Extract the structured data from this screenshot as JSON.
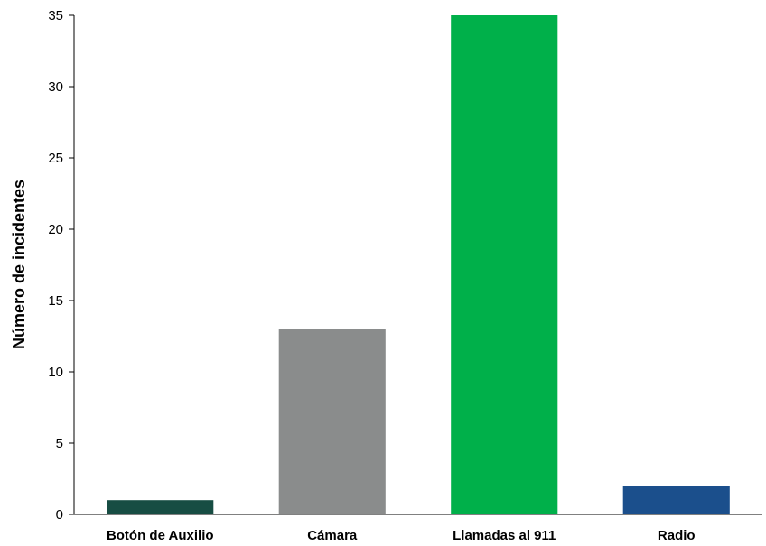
{
  "chart_data": {
    "type": "bar",
    "title": "",
    "xlabel": "",
    "ylabel": "Número de incidentes",
    "categories": [
      "Botón de Auxilio",
      "Cámara",
      "Llamadas al 911",
      "Radio"
    ],
    "values": [
      1,
      13,
      35,
      2
    ],
    "colors": [
      "#174d43",
      "#8a8c8c",
      "#00b04a",
      "#1b4f8c"
    ],
    "ylim": [
      0,
      35
    ],
    "yticks": [
      0,
      5,
      10,
      15,
      20,
      25,
      30,
      35
    ],
    "grid": false,
    "legend": "none"
  }
}
